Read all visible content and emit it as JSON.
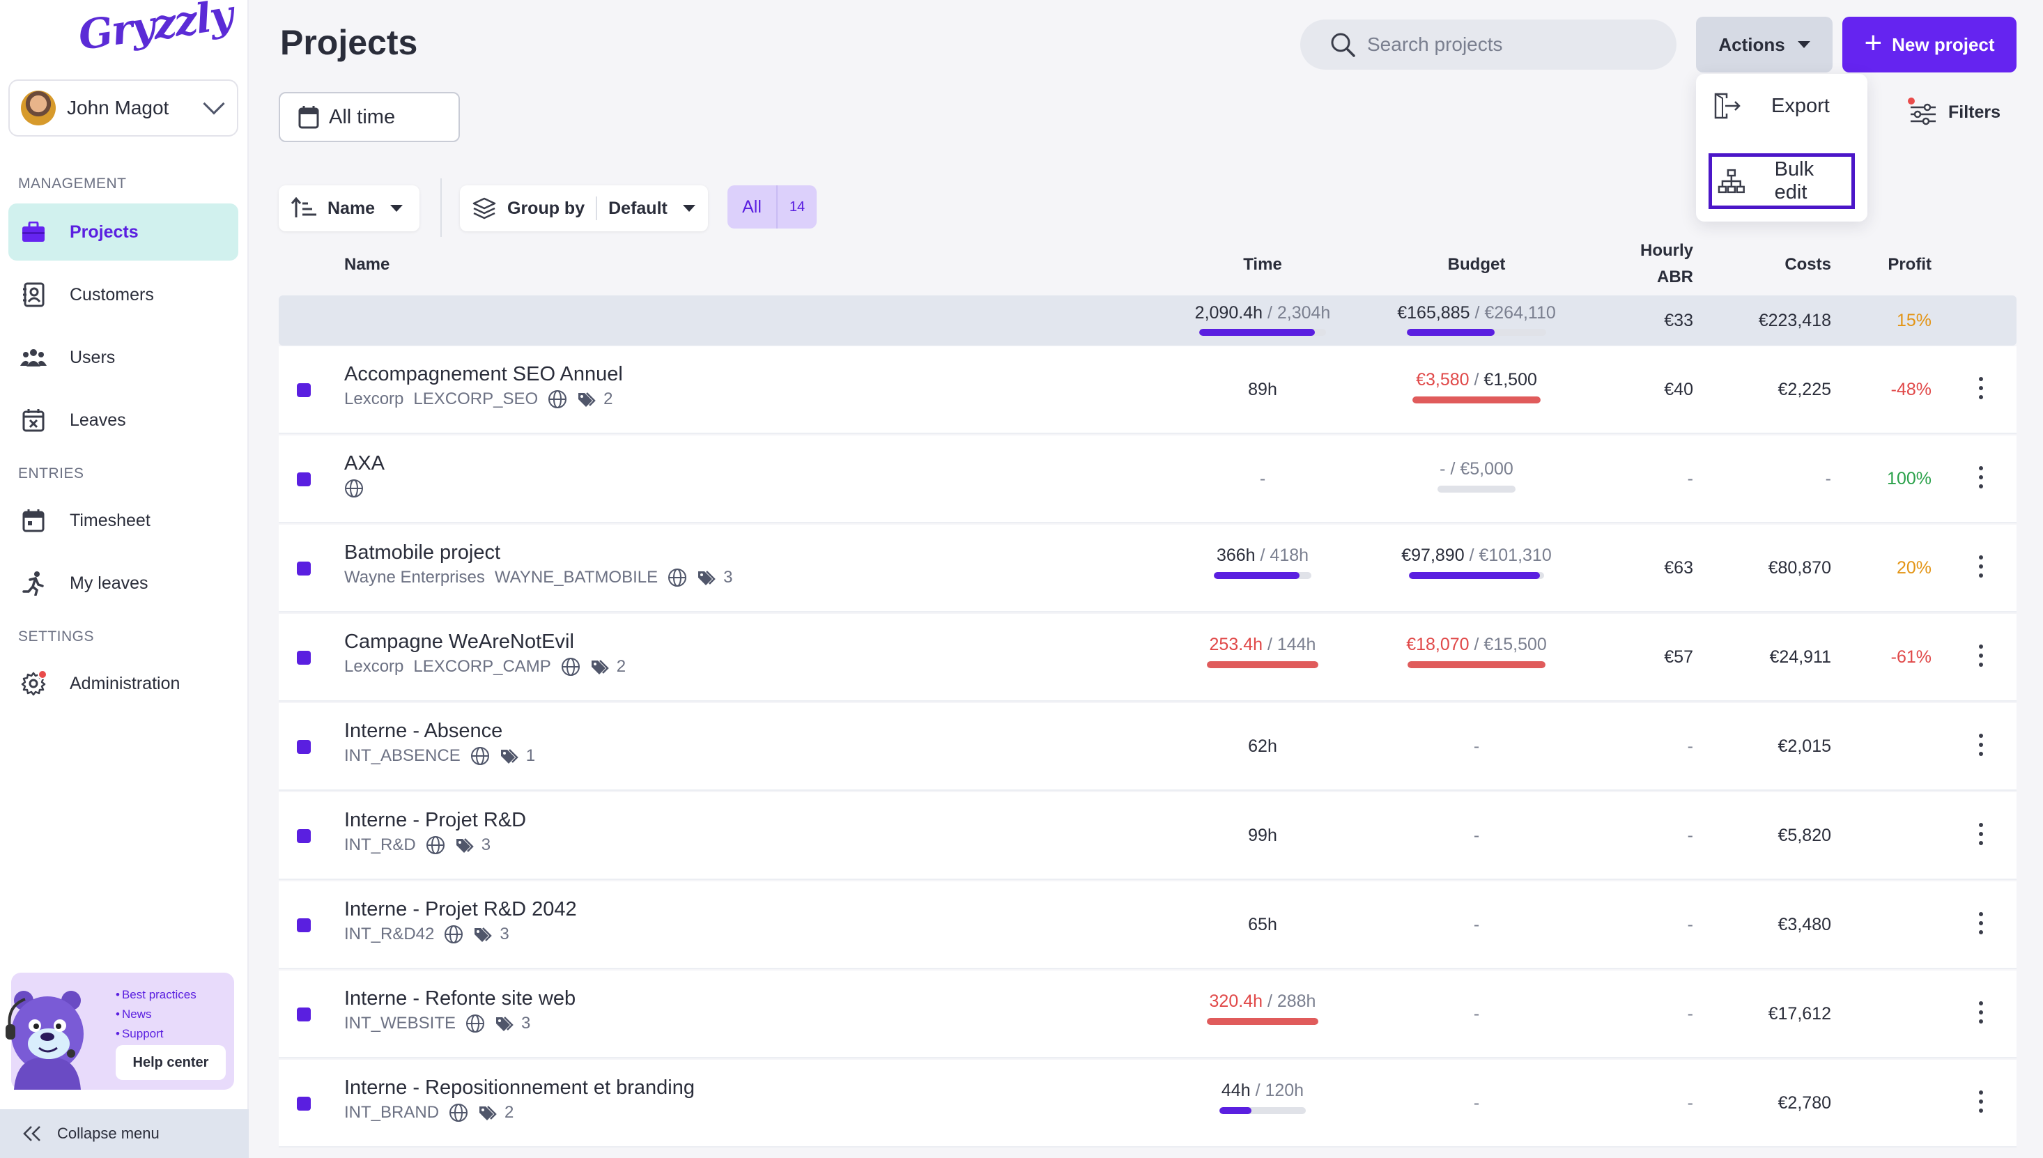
{
  "sidebar": {
    "logo": "Gryzzly",
    "user_name": "John Magot",
    "sections": {
      "management": "MANAGEMENT",
      "entries": "ENTRIES",
      "settings": "SETTINGS"
    },
    "items": [
      {
        "label": "Projects"
      },
      {
        "label": "Customers"
      },
      {
        "label": "Users"
      },
      {
        "label": "Leaves"
      },
      {
        "label": "Timesheet"
      },
      {
        "label": "My leaves"
      },
      {
        "label": "Administration"
      }
    ],
    "help": {
      "links": [
        "Best practices",
        "News",
        "Support"
      ],
      "button": "Help center"
    },
    "collapse_label": "Collapse menu"
  },
  "header": {
    "title": "Projects",
    "search_placeholder": "Search projects",
    "actions_label": "Actions",
    "new_project_label": "New project"
  },
  "actions_menu": {
    "export": "Export",
    "bulk_edit": "Bulk edit"
  },
  "toolbar": {
    "date_range": "All time",
    "filters_label": "Filters",
    "sort_label": "Name",
    "group_by_label": "Group by",
    "group_by_value": "Default",
    "segment_all": "All",
    "segment_count": "14"
  },
  "table": {
    "headers": {
      "name": "Name",
      "time": "Time",
      "budget": "Budget",
      "hourly_1": "Hourly",
      "hourly_2": "ABR",
      "costs": "Costs",
      "profit": "Profit"
    },
    "summary": {
      "time_main": "2,090.4h",
      "time_total": "2,304h",
      "time_progress": 0.91,
      "budget_main": "€165,885",
      "budget_total": "€264,110",
      "budget_progress": 0.63,
      "hourly": "€33",
      "costs": "€223,418",
      "profit": "15%"
    },
    "rows": [
      {
        "name": "Accompagnement SEO Annuel",
        "customer": "Lexcorp",
        "code": "LEXCORP_SEO",
        "tags": "2",
        "time": "89h",
        "budget_main": "€3,580",
        "budget_total": "€1,500",
        "budget_over": true,
        "budget_progress": 1.0,
        "hourly": "€40",
        "costs": "€2,225",
        "profit": "-48%"
      },
      {
        "name": "AXA",
        "customer": "",
        "code": "",
        "tags": "",
        "time": "-",
        "budget_main": "-",
        "budget_total": "€5,000",
        "budget_over": false,
        "budget_progress": 0,
        "hourly": "-",
        "costs": "-",
        "profit": "100%"
      },
      {
        "name": "Batmobile project",
        "customer": "Wayne Enterprises",
        "code": "WAYNE_BATMOBILE",
        "tags": "3",
        "time_main": "366h",
        "time_total": "418h",
        "time_progress": 0.88,
        "budget_main": "€97,890",
        "budget_total": "€101,310",
        "budget_over": false,
        "budget_progress": 0.97,
        "hourly": "€63",
        "costs": "€80,870",
        "profit": "20%"
      },
      {
        "name": "Campagne WeAreNotEvil",
        "customer": "Lexcorp",
        "code": "LEXCORP_CAMP",
        "tags": "2",
        "time_main": "253.4h",
        "time_total": "144h",
        "time_over": true,
        "time_progress": 1.0,
        "budget_main": "€18,070",
        "budget_total": "€15,500",
        "budget_over": true,
        "budget_progress": 1.0,
        "hourly": "€57",
        "costs": "€24,911",
        "profit": "-61%"
      },
      {
        "name": "Interne - Absence",
        "customer": "",
        "code": "INT_ABSENCE",
        "tags": "1",
        "time": "62h",
        "budget": "-",
        "hourly": "-",
        "costs": "€2,015",
        "profit": ""
      },
      {
        "name": "Interne - Projet R&D",
        "customer": "",
        "code": "INT_R&D",
        "tags": "3",
        "time": "99h",
        "budget": "-",
        "hourly": "-",
        "costs": "€5,820",
        "profit": ""
      },
      {
        "name": "Interne - Projet R&D 2042",
        "customer": "",
        "code": "INT_R&D42",
        "tags": "3",
        "time": "65h",
        "budget": "-",
        "hourly": "-",
        "costs": "€3,480",
        "profit": ""
      },
      {
        "name": "Interne - Refonte site web",
        "customer": "",
        "code": "INT_WEBSITE",
        "tags": "3",
        "time_main": "320.4h",
        "time_total": "288h",
        "time_over": true,
        "time_progress": 1.0,
        "budget": "-",
        "hourly": "-",
        "costs": "€17,612",
        "profit": ""
      },
      {
        "name": "Interne - Repositionnement et branding",
        "customer": "",
        "code": "INT_BRAND",
        "tags": "2",
        "time_main": "44h",
        "time_total": "120h",
        "time_progress": 0.37,
        "budget": "-",
        "hourly": "-",
        "costs": "€2,780",
        "profit": ""
      }
    ]
  },
  "colors": {
    "accent": "#5a1fe0",
    "primary_button": "#6524f0",
    "active_nav_bg": "#d1f1ee",
    "over_budget": "#e04848",
    "profit_positive": "#2aa14a",
    "profit_mid": "#e39414"
  }
}
